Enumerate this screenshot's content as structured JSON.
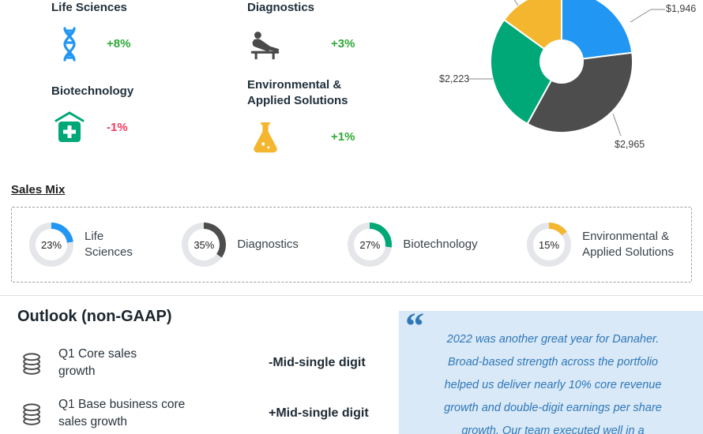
{
  "segments": [
    {
      "name": "Life Sciences",
      "growth": "+8%",
      "color": "#2196F3"
    },
    {
      "name": "Diagnostics",
      "growth": "+3%",
      "color": "#4D4D4D"
    },
    {
      "name": "Biotechnology",
      "growth": "-1%",
      "color": "#00A878"
    },
    {
      "name": "Environmental &\nApplied Solutions",
      "growth": "+1%",
      "color": "#F4B62E"
    }
  ],
  "chart_data": {
    "type": "pie",
    "style": "donut",
    "legend_position": "none",
    "segments": [
      {
        "label": "Life Sciences",
        "value_label": "$1,946",
        "share": 23,
        "color": "#2196F3"
      },
      {
        "label": "Diagnostics",
        "value_label": "$2,965",
        "share": 35,
        "color": "#4D4D4D"
      },
      {
        "label": "Biotechnology",
        "value_label": "$2,223",
        "share": 27,
        "color": "#00A878"
      },
      {
        "label": "Environmental & Applied Solutions",
        "value_label": "",
        "share": 15,
        "color": "#F4B62E"
      }
    ]
  },
  "sales_mix": {
    "title": "Sales Mix",
    "items": [
      {
        "pct": "23%",
        "value": 23,
        "label": "Life\nSciences",
        "color": "#2196F3"
      },
      {
        "pct": "35%",
        "value": 35,
        "label": "Diagnostics",
        "color": "#4D4D4D"
      },
      {
        "pct": "27%",
        "value": 27,
        "label": "Biotechnology",
        "color": "#00A878"
      },
      {
        "pct": "15%",
        "value": 15,
        "label": "Environmental &\nApplied Solutions",
        "color": "#F4B62E"
      }
    ]
  },
  "outlook": {
    "title": "Outlook (non-GAAP)",
    "rows": [
      {
        "label": "Q1 Core sales\ngrowth",
        "value": "-Mid-single digit"
      },
      {
        "label": "Q1 Base business core\nsales growth",
        "value": "+Mid-single digit"
      }
    ]
  },
  "quote": {
    "mark": "“",
    "text": "2022 was another great year for Danaher.\nBroad-based strength across the portfolio\nhelped us deliver nearly 10% core revenue\ngrowth and double-digit earnings per share\ngrowth. Our team executed well in a"
  }
}
